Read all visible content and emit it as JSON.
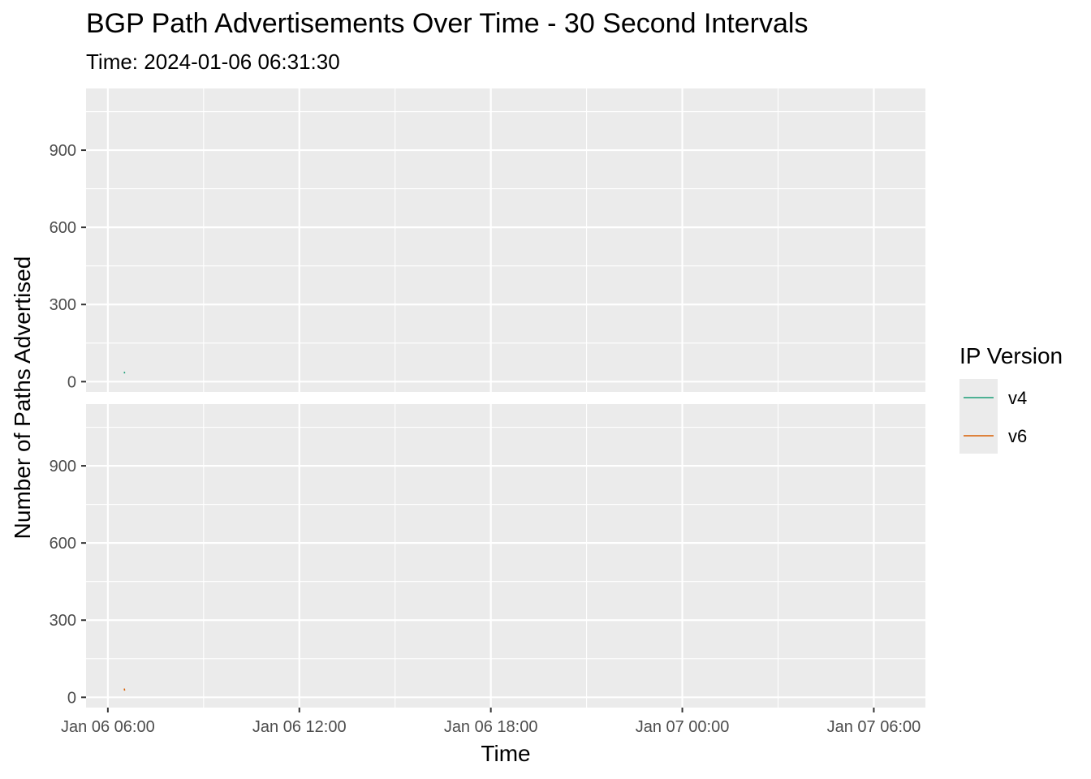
{
  "chart_data": {
    "type": "line",
    "title": "BGP Path Advertisements Over Time - 30 Second Intervals",
    "subtitle": "Time: 2024-01-06 06:31:30",
    "xlabel": "Time",
    "ylabel": "Number of Paths Advertised",
    "x_ticks": [
      "Jan 06 06:00",
      "Jan 06 12:00",
      "Jan 06 18:00",
      "Jan 07 00:00",
      "Jan 07 06:00"
    ],
    "y_ticks": [
      "0",
      "300",
      "600",
      "900"
    ],
    "ylim": [
      -40,
      1140
    ],
    "xlim": [
      "2024-01-06 05:19:00",
      "2024-01-07 07:37:00"
    ],
    "facets": [
      "v4",
      "v6"
    ],
    "grid": true,
    "legend": {
      "title": "IP Version",
      "position": "right",
      "entries": [
        {
          "label": "v4",
          "color": "#1b9e77"
        },
        {
          "label": "v6",
          "color": "#d95f02"
        }
      ]
    },
    "series": [
      {
        "name": "v4",
        "color": "#1b9e77",
        "facet": 0,
        "points": [
          [
            "2024-01-06 06:31:00",
            38
          ],
          [
            "2024-01-06 06:31:30",
            32
          ]
        ]
      },
      {
        "name": "v6",
        "color": "#d95f02",
        "facet": 1,
        "points": [
          [
            "2024-01-06 06:31:00",
            34
          ],
          [
            "2024-01-06 06:31:30",
            26
          ]
        ]
      }
    ]
  }
}
